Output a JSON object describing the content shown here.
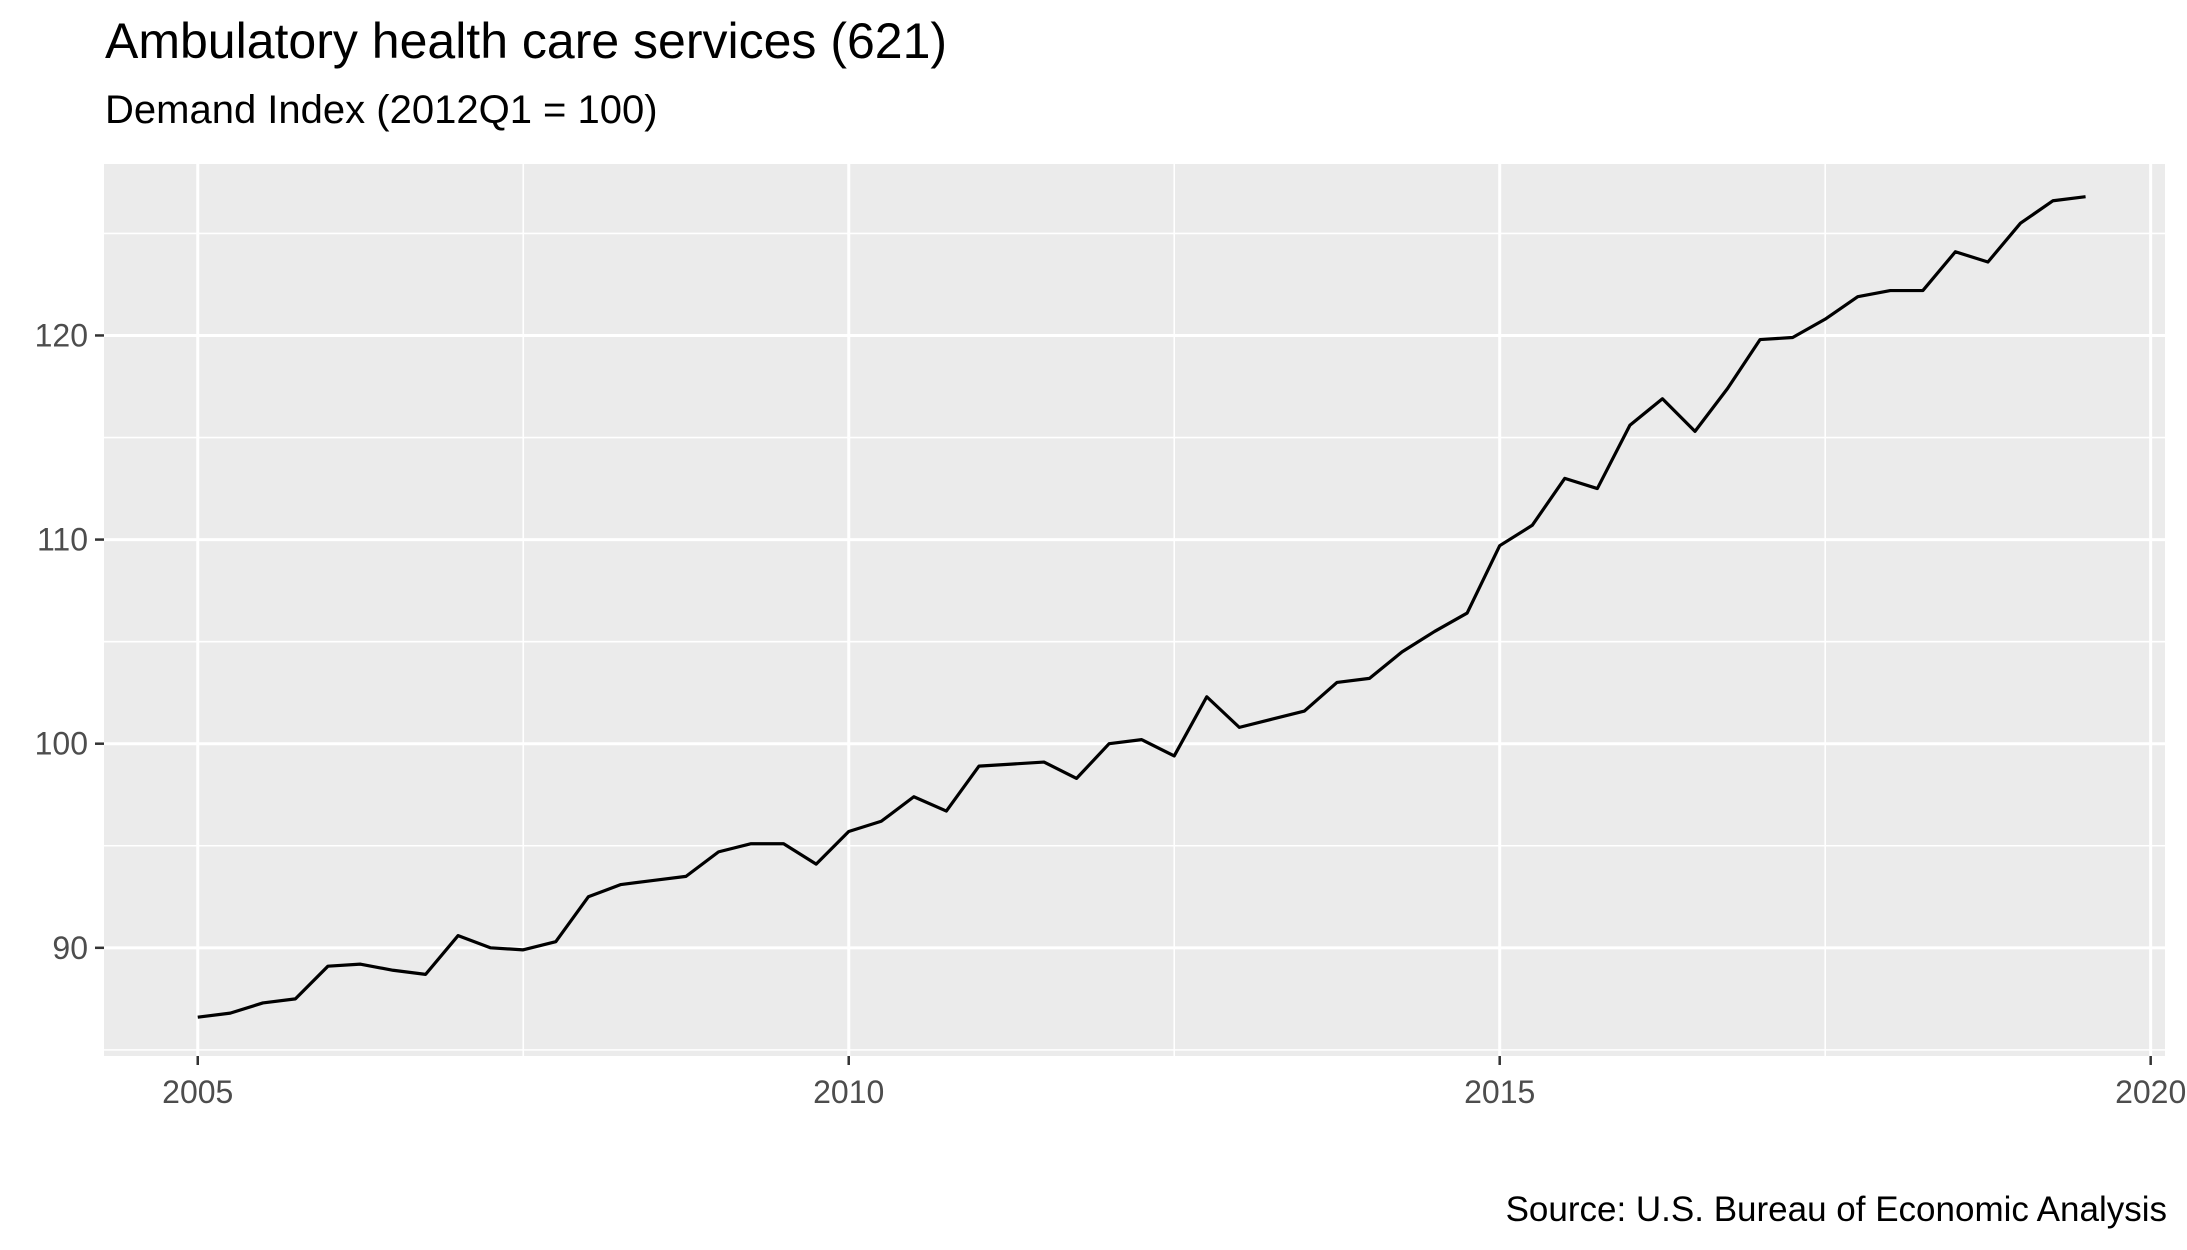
{
  "chart_data": {
    "type": "line",
    "title": "Ambulatory health care services (621)",
    "subtitle": "Demand Index (2012Q1 = 100)",
    "caption": "Source: U.S. Bureau of Economic Analysis",
    "xlabel": "",
    "ylabel": "",
    "xlim": [
      2004.28,
      2020.11
    ],
    "ylim": [
      84.7,
      128.4
    ],
    "x_ticks": [
      2005,
      2010,
      2015,
      2020
    ],
    "x_tick_labels": [
      "2005",
      "2010",
      "2015",
      "2020"
    ],
    "y_ticks": [
      90,
      100,
      110,
      120
    ],
    "y_tick_labels": [
      "90",
      "100",
      "110",
      "120"
    ],
    "grid": true,
    "legend": "none",
    "colors": {
      "panel": "#ebebeb",
      "grid": "#ffffff",
      "line": "#000000"
    },
    "series": [
      {
        "x": [
          2005.0,
          2005.25,
          2005.5,
          2005.75,
          2006.0,
          2006.25,
          2006.5,
          2006.75,
          2007.0,
          2007.25,
          2007.5,
          2007.75,
          2008.0,
          2008.25,
          2008.5,
          2008.75,
          2009.0,
          2009.25,
          2009.5,
          2009.75,
          2010.0,
          2010.25,
          2010.5,
          2010.75,
          2011.0,
          2011.25,
          2011.5,
          2011.75,
          2012.0,
          2012.25,
          2012.5,
          2012.75,
          2013.0,
          2013.25,
          2013.5,
          2013.75,
          2014.0,
          2014.25,
          2014.5,
          2014.75,
          2015.0,
          2015.25,
          2015.5,
          2015.75,
          2016.0,
          2016.25,
          2016.5,
          2016.75,
          2017.0,
          2017.25,
          2017.5,
          2017.75,
          2018.0,
          2018.25,
          2018.5,
          2018.75,
          2019.0,
          2019.25,
          2019.5
        ],
        "values": [
          86.6,
          86.8,
          87.3,
          87.5,
          89.1,
          89.2,
          88.9,
          88.7,
          90.6,
          90.0,
          89.9,
          90.3,
          92.5,
          93.1,
          93.3,
          93.5,
          94.7,
          95.1,
          95.1,
          94.1,
          95.7,
          96.2,
          97.4,
          96.7,
          98.9,
          99.0,
          99.1,
          98.3,
          100.0,
          100.2,
          99.4,
          102.3,
          100.8,
          101.2,
          101.6,
          103.0,
          103.2,
          104.5,
          105.5,
          106.4,
          109.7,
          110.7,
          113.0,
          112.5,
          115.6,
          116.9,
          115.3,
          117.4,
          119.8,
          119.9,
          120.8,
          121.9,
          122.2,
          122.2,
          124.1,
          123.6,
          125.5,
          126.6,
          126.8
        ]
      }
    ]
  }
}
